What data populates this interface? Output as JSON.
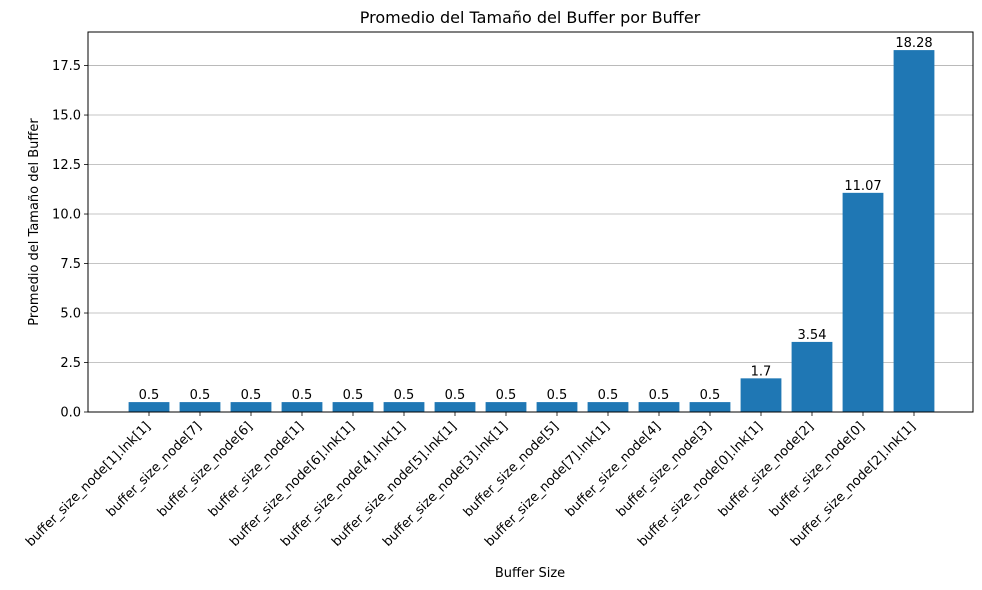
{
  "chart_data": {
    "type": "bar",
    "title": "Promedio del Tamaño del Buffer por Buffer",
    "xlabel": "Buffer Size",
    "ylabel": "Promedio del Tamaño del Buffer",
    "categories": [
      "buffer_size_node[1].lnk[1]",
      "buffer_size_node[7]",
      "buffer_size_node[6]",
      "buffer_size_node[1]",
      "buffer_size_node[6].lnk[1]",
      "buffer_size_node[4].lnk[1]",
      "buffer_size_node[5].lnk[1]",
      "buffer_size_node[3].lnk[1]",
      "buffer_size_node[5]",
      "buffer_size_node[7].lnk[1]",
      "buffer_size_node[4]",
      "buffer_size_node[3]",
      "buffer_size_node[0].lnk[1]",
      "buffer_size_node[2]",
      "buffer_size_node[0]",
      "buffer_size_node[2].lnk[1]"
    ],
    "values": [
      0.5,
      0.5,
      0.5,
      0.5,
      0.5,
      0.5,
      0.5,
      0.5,
      0.5,
      0.5,
      0.5,
      0.5,
      1.7,
      3.54,
      11.07,
      18.28
    ],
    "value_labels": [
      "0.5",
      "0.5",
      "0.5",
      "0.5",
      "0.5",
      "0.5",
      "0.5",
      "0.5",
      "0.5",
      "0.5",
      "0.5",
      "0.5",
      "1.7",
      "3.54",
      "11.07",
      "18.28"
    ],
    "yticks": [
      0.0,
      2.5,
      5.0,
      7.5,
      10.0,
      12.5,
      15.0,
      17.5
    ],
    "ytick_labels": [
      "0.0",
      "2.5",
      "5.0",
      "7.5",
      "10.0",
      "12.5",
      "15.0",
      "17.5"
    ],
    "ylim": [
      0,
      19.194
    ],
    "grid": "y",
    "bar_color": "#1f77b4",
    "grid_color": "#b0b0b0"
  }
}
